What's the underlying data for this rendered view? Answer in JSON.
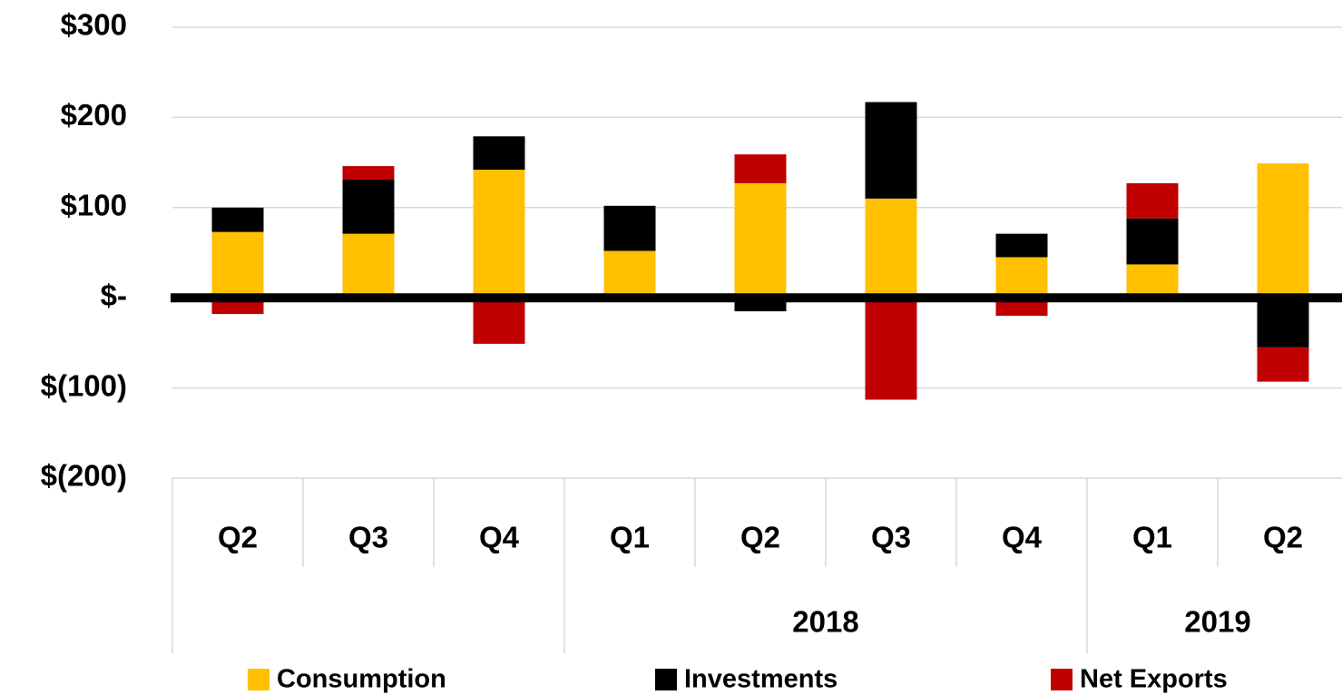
{
  "chart_data": {
    "type": "stacked_bar",
    "categories": [
      "Q2",
      "Q3",
      "Q4",
      "Q1",
      "Q2",
      "Q3",
      "Q4",
      "Q1",
      "Q2"
    ],
    "groups": [
      {
        "label": null,
        "count": 3
      },
      {
        "label": "2018",
        "count": 4
      },
      {
        "label": "2019",
        "count": 2
      }
    ],
    "series": [
      {
        "name": "Consumption",
        "color": "#ffc000",
        "values": [
          73,
          71,
          142,
          52,
          127,
          110,
          45,
          37,
          149
        ]
      },
      {
        "name": "Investments",
        "color": "#000000",
        "values": [
          27,
          60,
          37,
          50,
          -15,
          107,
          26,
          51,
          -55
        ]
      },
      {
        "name": "Net Exports",
        "color": "#c00000",
        "values": [
          -18,
          15,
          -51,
          0,
          32,
          -113,
          -20,
          39,
          -38
        ]
      }
    ],
    "ylim": [
      -200,
      300
    ],
    "yticks": [
      {
        "value": 300,
        "label": "$300"
      },
      {
        "value": 200,
        "label": "$200"
      },
      {
        "value": 100,
        "label": "$100"
      },
      {
        "value": 0,
        "label": "$-"
      },
      {
        "value": -100,
        "label": "$(100)"
      },
      {
        "value": -200,
        "label": "$(200)"
      }
    ],
    "grid": true,
    "legend": "bottom"
  }
}
